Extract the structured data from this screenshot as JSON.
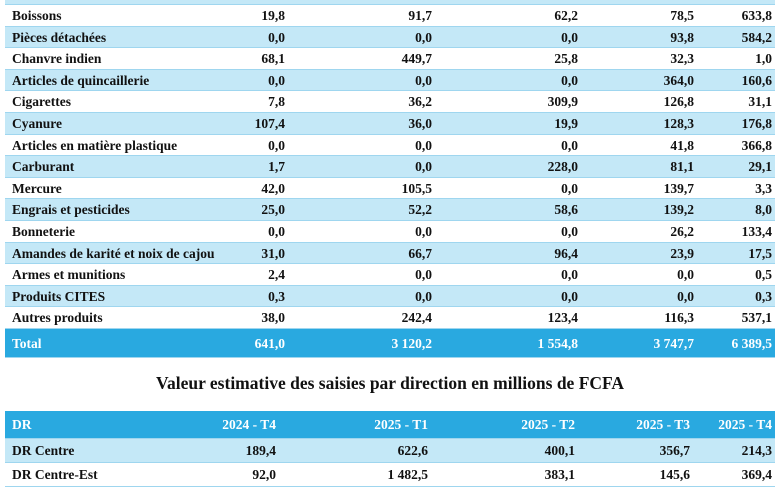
{
  "table_top": {
    "rows": [
      [
        "Boissons",
        "19,8",
        "91,7",
        "62,2",
        "78,5",
        "633,8"
      ],
      [
        "Pièces détachées",
        "0,0",
        "0,0",
        "0,0",
        "93,8",
        "584,2"
      ],
      [
        "Chanvre indien",
        "68,1",
        "449,7",
        "25,8",
        "32,3",
        "1,0"
      ],
      [
        "Articles de quincaillerie",
        "0,0",
        "0,0",
        "0,0",
        "364,0",
        "160,6"
      ],
      [
        "Cigarettes",
        "7,8",
        "36,2",
        "309,9",
        "126,8",
        "31,1"
      ],
      [
        "Cyanure",
        "107,4",
        "36,0",
        "19,9",
        "128,3",
        "176,8"
      ],
      [
        "Articles en matière plastique",
        "0,0",
        "0,0",
        "0,0",
        "41,8",
        "366,8"
      ],
      [
        "Carburant",
        "1,7",
        "0,0",
        "228,0",
        "81,1",
        "29,1"
      ],
      [
        "Mercure",
        "42,0",
        "105,5",
        "0,0",
        "139,7",
        "3,3"
      ],
      [
        "Engrais et pesticides",
        "25,0",
        "52,2",
        "58,6",
        "139,2",
        "8,0"
      ],
      [
        "Bonneterie",
        "0,0",
        "0,0",
        "0,0",
        "26,2",
        "133,4"
      ],
      [
        "Amandes de karité et noix de cajou",
        "31,0",
        "66,7",
        "96,4",
        "23,9",
        "17,5"
      ],
      [
        "Armes et munitions",
        "2,4",
        "0,0",
        "0,0",
        "0,0",
        "0,5"
      ],
      [
        "Produits CITES",
        "0,3",
        "0,0",
        "0,0",
        "0,0",
        "0,3"
      ],
      [
        "Autres produits",
        "38,0",
        "242,4",
        "123,4",
        "116,3",
        "537,1"
      ]
    ],
    "total": [
      "Total",
      "641,0",
      "3 120,2",
      "1 554,8",
      "3 747,7",
      "6 389,5"
    ]
  },
  "caption": "Valeur estimative des saisies par direction en millions de FCFA",
  "table_dr": {
    "header": [
      "DR",
      "2024 - T4",
      "2025 - T1",
      "2025 - T2",
      "2025 - T3",
      "2025 - T4"
    ],
    "rows": [
      [
        "DR Centre",
        "189,4",
        "622,6",
        "400,1",
        "356,7",
        "214,3"
      ],
      [
        "DR Centre-Est",
        "92,0",
        "1 482,5",
        "383,1",
        "145,6",
        "369,4"
      ]
    ]
  }
}
